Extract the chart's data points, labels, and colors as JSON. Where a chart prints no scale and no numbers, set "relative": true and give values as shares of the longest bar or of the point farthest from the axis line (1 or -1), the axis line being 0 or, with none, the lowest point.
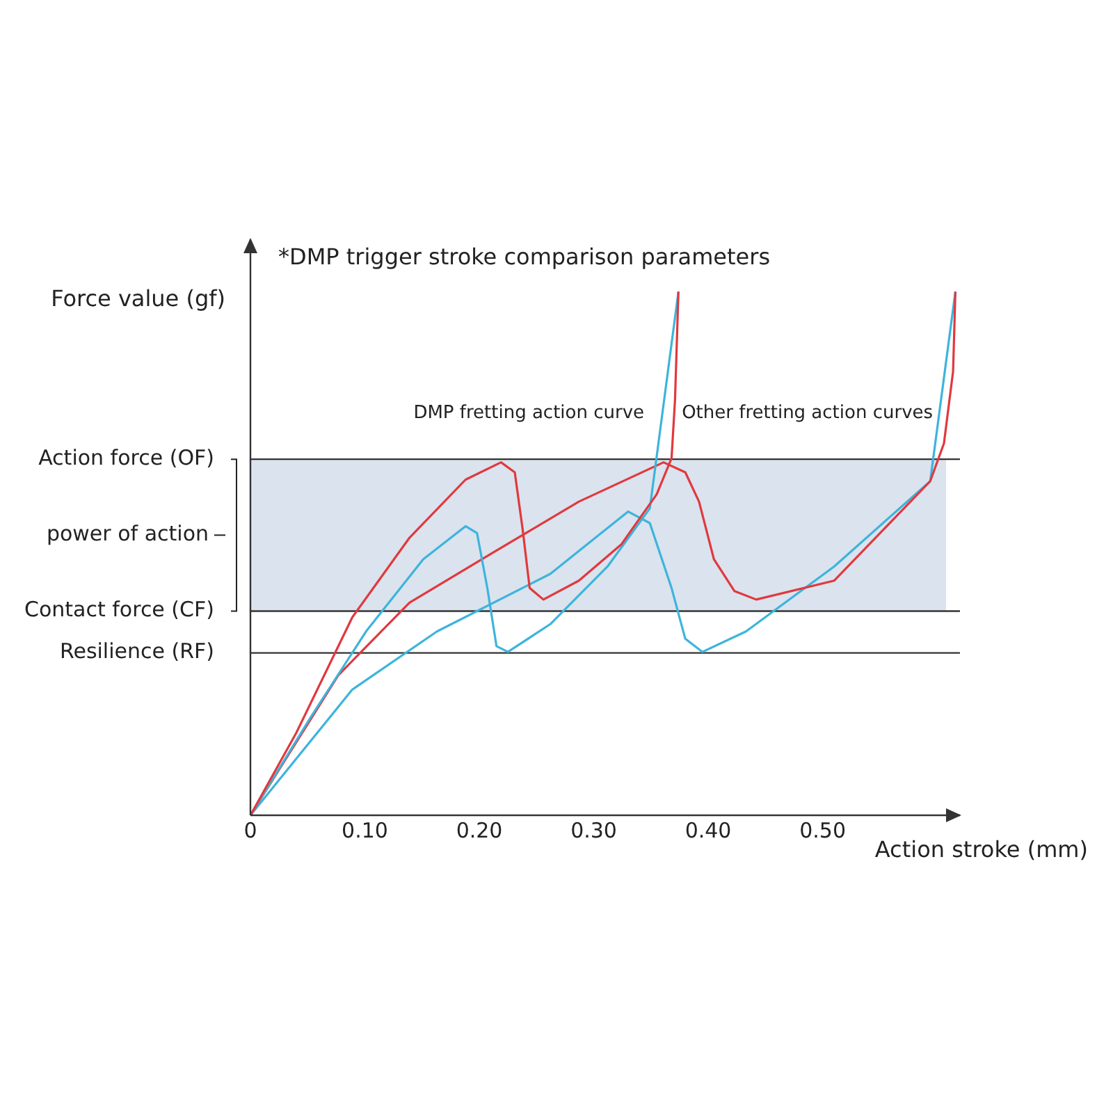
{
  "chart_data": {
    "type": "line",
    "title": "*DMP trigger stroke comparison parameters",
    "xlabel": "Action stroke (mm)",
    "ylabel": "Force value (gf)",
    "relative": true,
    "xlim": [
      0,
      0.62
    ],
    "xticks": [
      0,
      {
        "value": 0.1,
        "label": "0.10"
      },
      {
        "value": 0.2,
        "label": "0.20"
      },
      {
        "value": 0.3,
        "label": "0.30"
      },
      {
        "value": 0.4,
        "label": "0.40"
      },
      {
        "value": 0.5,
        "label": "0.50"
      }
    ],
    "grid": false,
    "legend": false,
    "marker": "none",
    "line_style": "solid",
    "annotations": [
      "DMP fretting action curve",
      "Other fretting action curves"
    ],
    "ref_lines": [
      {
        "axis": "y",
        "value": 0.68,
        "label": "Action force (OF)",
        "color": "#333333"
      },
      {
        "axis": "y",
        "value": 0.39,
        "label": "Contact force (CF)",
        "color": "#333333"
      },
      {
        "axis": "y",
        "value": 0.31,
        "label": "Resilience (RF)",
        "color": "#333333"
      }
    ],
    "bands": [
      {
        "axis": "y",
        "from": 0.39,
        "to": 0.68,
        "label": "power of action",
        "color": "#dbe3ee"
      }
    ],
    "series": [
      {
        "color": "#e0393e",
        "x": [
          0,
          0.04,
          0.089,
          0.139,
          0.188,
          0.219,
          0.231,
          0.238,
          0.244,
          0.256,
          0.287,
          0.324,
          0.355,
          0.368,
          0.371,
          0.374
        ],
        "values": [
          0,
          0.157,
          0.378,
          0.53,
          0.641,
          0.674,
          0.655,
          0.544,
          0.434,
          0.412,
          0.448,
          0.517,
          0.613,
          0.682,
          0.793,
          1
        ]
      },
      {
        "color": "#3db4dc",
        "x": [
          0,
          0.052,
          0.101,
          0.151,
          0.188,
          0.198,
          0.207,
          0.215,
          0.225,
          0.262,
          0.312,
          0.349,
          0.374
        ],
        "values": [
          0,
          0.185,
          0.351,
          0.489,
          0.552,
          0.539,
          0.434,
          0.323,
          0.312,
          0.365,
          0.475,
          0.586,
          1
        ]
      },
      {
        "color": "#e0393e",
        "x": [
          0,
          0.077,
          0.139,
          0.213,
          0.287,
          0.361,
          0.38,
          0.392,
          0.405,
          0.423,
          0.442,
          0.51,
          0.594,
          0.606,
          0.614,
          0.616
        ],
        "values": [
          0,
          0.268,
          0.406,
          0.503,
          0.599,
          0.674,
          0.655,
          0.599,
          0.489,
          0.428,
          0.412,
          0.448,
          0.638,
          0.71,
          0.848,
          1
        ]
      },
      {
        "color": "#3db4dc",
        "x": [
          0,
          0.089,
          0.163,
          0.262,
          0.33,
          0.349,
          0.368,
          0.38,
          0.395,
          0.433,
          0.51,
          0.594,
          0.616
        ],
        "values": [
          0,
          0.24,
          0.351,
          0.461,
          0.58,
          0.558,
          0.434,
          0.337,
          0.312,
          0.351,
          0.475,
          0.638,
          1
        ]
      }
    ]
  }
}
